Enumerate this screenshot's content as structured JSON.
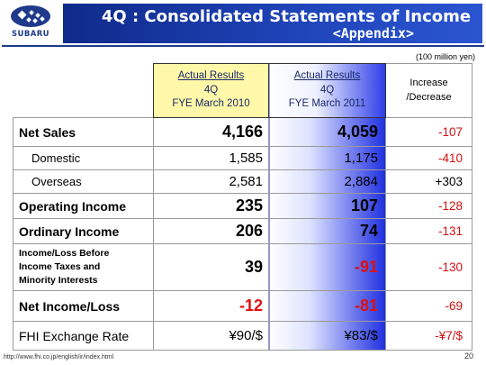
{
  "logo": {
    "text": "SUBARU"
  },
  "title": {
    "line1": "4Q : Consolidated Statements of Income",
    "line2": "<Appendix>"
  },
  "unit": "(100 million yen)",
  "columns": {
    "col1": {
      "line1": "Actual Results",
      "line2": "4Q",
      "line3": "FYE March 2010"
    },
    "col2": {
      "line1": "Actual Results",
      "line2": "4Q",
      "line3": "FYE March 2011"
    },
    "col3": {
      "line1": "Increase",
      "line2": "/Decrease"
    }
  },
  "rows": [
    {
      "label": "Net Sales",
      "fy2010": "4,166",
      "fy2011": "4,059",
      "change": "-107"
    },
    {
      "label": "Domestic",
      "fy2010": "1,585",
      "fy2011": "1,175",
      "change": "-410"
    },
    {
      "label": "Overseas",
      "fy2010": "2,581",
      "fy2011": "2,884",
      "change": "+303"
    },
    {
      "label": "Operating Income",
      "fy2010": "235",
      "fy2011": "107",
      "change": "-128"
    },
    {
      "label": "Ordinary Income",
      "fy2010": "206",
      "fy2011": "74",
      "change": "-131"
    },
    {
      "label_lines": [
        "Income/Loss Before",
        "Income Taxes and",
        "Minority Interests"
      ],
      "fy2010": "39",
      "fy2011": "-91",
      "change": "-130"
    },
    {
      "label": "Net Income/Loss",
      "fy2010": "-12",
      "fy2011": "-81",
      "change": "-69"
    },
    {
      "label": "FHI Exchange Rate",
      "fy2010": "¥90/$",
      "fy2011": "¥83/$",
      "change": "-¥7/$"
    }
  ],
  "footer": {
    "url": "http://www.fhi.co.jp/english/ir/index.html",
    "page": "20"
  },
  "colors": {
    "brand_blue": "#1f3a8a",
    "highlight_yellow": "#fff8a8",
    "negative_red": "#e01010"
  }
}
